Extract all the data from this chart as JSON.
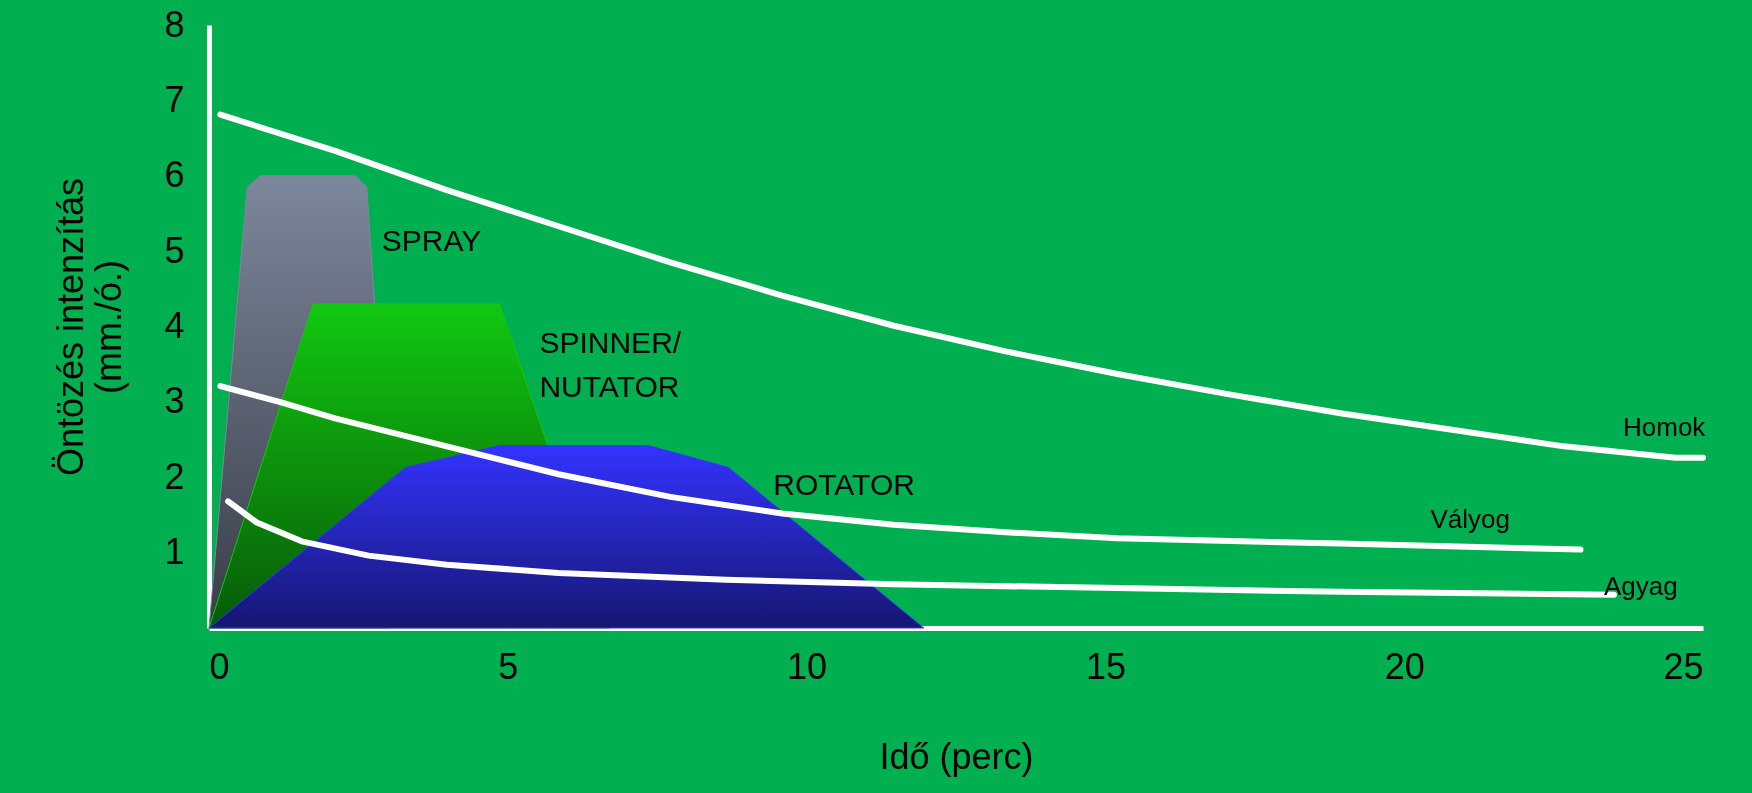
{
  "chart_data": {
    "type": "area",
    "xlabel": "Idő (perc)",
    "ylabel": "Öntözés intenzítás\n(mm./ó.)",
    "xlim": [
      0,
      25
    ],
    "ylim": [
      0,
      8
    ],
    "xticks": [
      0,
      5,
      10,
      15,
      20,
      25
    ],
    "yticks": [
      1,
      2,
      3,
      4,
      5,
      6,
      7,
      8
    ],
    "grid": false,
    "series": [
      {
        "name": "SPRAY",
        "color": "#7d879c",
        "x": [
          0,
          0.64,
          0.86,
          2.45,
          2.64,
          2.77,
          3.0
        ],
        "values": [
          0,
          5.85,
          6.0,
          6.0,
          5.85,
          4.3,
          0
        ]
      },
      {
        "name": "SPINNER/\nNUTATOR",
        "color": "#11c811",
        "x": [
          0,
          1.74,
          4.86,
          5.66,
          6.7
        ],
        "values": [
          0,
          4.3,
          4.3,
          2.44,
          0
        ]
      },
      {
        "name": "ROTATOR",
        "color": "#3333ff",
        "x": [
          0,
          3.29,
          4.86,
          7.35,
          8.69,
          11.96
        ],
        "values": [
          0,
          2.13,
          2.42,
          2.42,
          2.13,
          0
        ]
      },
      {
        "name": "Homok",
        "type": "line",
        "color": "#ffffff",
        "x": [
          0.19,
          2.11,
          3.98,
          5.85,
          7.72,
          9.59,
          11.46,
          13.33,
          15.2,
          17.07,
          18.93,
          20.8,
          22.67,
          24.54,
          25.0
        ],
        "values": [
          6.81,
          6.33,
          5.81,
          5.33,
          4.85,
          4.41,
          4.01,
          3.67,
          3.37,
          3.1,
          2.85,
          2.63,
          2.41,
          2.26,
          2.26
        ]
      },
      {
        "name": "Vályog",
        "type": "line",
        "color": "#ffffff",
        "x": [
          0.19,
          1.18,
          2.11,
          3.98,
          5.85,
          7.72,
          9.59,
          11.46,
          13.33,
          15.2,
          18.93,
          22.95
        ],
        "values": [
          3.21,
          3.0,
          2.78,
          2.41,
          2.04,
          1.74,
          1.52,
          1.37,
          1.27,
          1.19,
          1.12,
          1.04
        ]
      },
      {
        "name": "Agyag",
        "type": "line",
        "color": "#ffffff",
        "x": [
          0.32,
          0.8,
          1.55,
          2.67,
          3.98,
          5.85,
          8.65,
          11.46,
          15.2,
          18.93,
          23.51
        ],
        "values": [
          1.68,
          1.4,
          1.15,
          0.96,
          0.84,
          0.73,
          0.64,
          0.58,
          0.53,
          0.48,
          0.44
        ]
      }
    ]
  }
}
